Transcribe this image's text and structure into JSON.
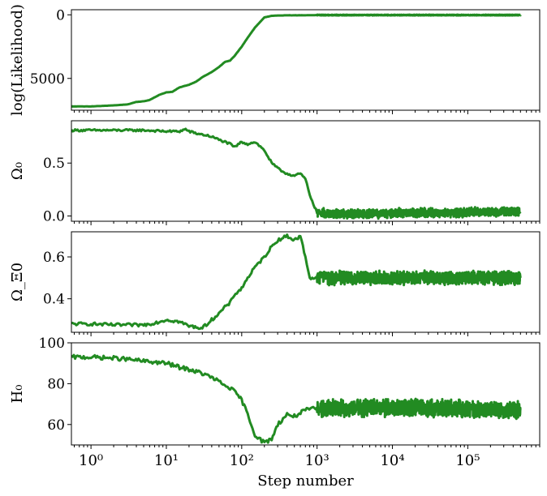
{
  "chart_data": [
    {
      "type": "line",
      "ylabel": "log(Likelihood)",
      "xscale": "log",
      "xlim": [
        0.55,
        900000
      ],
      "ylim": [
        7500,
        -400
      ],
      "yinvert": true,
      "yticks": [
        0,
        5000
      ],
      "ytick_labels": [
        "0",
        "5000"
      ],
      "grid": false,
      "series": [
        {
          "color": "#228b22",
          "x": [
            0.55,
            1,
            2,
            3,
            4,
            5,
            6,
            8,
            10,
            12,
            15,
            20,
            25,
            30,
            40,
            50,
            60,
            70,
            80,
            100,
            120,
            150,
            200,
            250,
            300,
            400,
            500,
            700,
            1000,
            10000,
            100000,
            500000
          ],
          "y": [
            7200,
            7200,
            7120,
            7050,
            6850,
            6800,
            6700,
            6300,
            6100,
            6050,
            5700,
            5500,
            5250,
            4900,
            4500,
            4100,
            3700,
            3600,
            3250,
            2500,
            1800,
            1000,
            200,
            80,
            50,
            40,
            40,
            30,
            20,
            20,
            20,
            20
          ],
          "noise": 30
        }
      ]
    },
    {
      "type": "line",
      "ylabel": "Ω₀",
      "xscale": "log",
      "xlim": [
        0.55,
        900000
      ],
      "ylim": [
        -0.05,
        0.9
      ],
      "yticks": [
        0.0,
        0.5
      ],
      "ytick_labels": [
        "0.0",
        "0.5"
      ],
      "grid": false,
      "series": [
        {
          "color": "#228b22",
          "x": [
            0.55,
            1,
            3,
            5,
            10,
            15,
            18,
            20,
            25,
            30,
            40,
            50,
            60,
            70,
            80,
            100,
            120,
            150,
            200,
            250,
            300,
            350,
            400,
            500,
            600,
            700,
            800,
            1000,
            1500,
            10000,
            100000,
            500000
          ],
          "y": [
            0.81,
            0.81,
            0.81,
            0.81,
            0.8,
            0.8,
            0.82,
            0.8,
            0.78,
            0.77,
            0.75,
            0.72,
            0.7,
            0.68,
            0.65,
            0.7,
            0.68,
            0.7,
            0.62,
            0.5,
            0.45,
            0.42,
            0.4,
            0.38,
            0.4,
            0.35,
            0.2,
            0.03,
            0.02,
            0.03,
            0.04,
            0.04
          ],
          "noise": 0.04
        }
      ]
    },
    {
      "type": "line",
      "ylabel": "Ω_Ξ0",
      "xscale": "log",
      "xlim": [
        0.55,
        900000
      ],
      "ylim": [
        0.24,
        0.72
      ],
      "yticks": [
        0.4,
        0.6
      ],
      "ytick_labels": [
        "0.4",
        "0.6"
      ],
      "grid": false,
      "series": [
        {
          "color": "#228b22",
          "x": [
            0.55,
            1,
            2,
            3,
            5,
            6,
            8,
            10,
            15,
            20,
            30,
            40,
            50,
            60,
            70,
            80,
            100,
            120,
            150,
            200,
            250,
            300,
            400,
            500,
            600,
            700,
            800,
            1000,
            10000,
            100000,
            500000
          ],
          "y": [
            0.28,
            0.28,
            0.275,
            0.275,
            0.275,
            0.28,
            0.29,
            0.3,
            0.29,
            0.27,
            0.26,
            0.3,
            0.33,
            0.36,
            0.38,
            0.42,
            0.45,
            0.5,
            0.55,
            0.6,
            0.65,
            0.68,
            0.7,
            0.68,
            0.7,
            0.6,
            0.5,
            0.5,
            0.5,
            0.5,
            0.5
          ],
          "noise": 0.03
        }
      ]
    },
    {
      "type": "line",
      "ylabel": "H₀",
      "xlabel": "Step number",
      "xscale": "log",
      "xlim": [
        0.55,
        900000
      ],
      "ylim": [
        50,
        100
      ],
      "yticks": [
        60,
        80,
        100
      ],
      "ytick_labels": [
        "60",
        "80",
        "100"
      ],
      "xtick_labels": [
        "10⁰",
        "10¹",
        "10²",
        "10³",
        "10⁴",
        "10⁵"
      ],
      "grid": false,
      "series": [
        {
          "color": "#228b22",
          "x": [
            0.55,
            1,
            2,
            3,
            5,
            10,
            15,
            20,
            30,
            40,
            50,
            60,
            70,
            80,
            100,
            120,
            150,
            200,
            250,
            300,
            400,
            500,
            700,
            1000,
            10000,
            100000,
            500000
          ],
          "y": [
            93,
            93,
            92.5,
            92,
            91,
            90,
            88,
            87,
            85,
            83,
            81,
            79,
            78,
            76,
            72,
            65,
            55,
            51,
            53,
            60,
            65,
            64,
            67,
            68,
            68,
            67,
            67
          ],
          "noise": 4
        }
      ]
    }
  ]
}
